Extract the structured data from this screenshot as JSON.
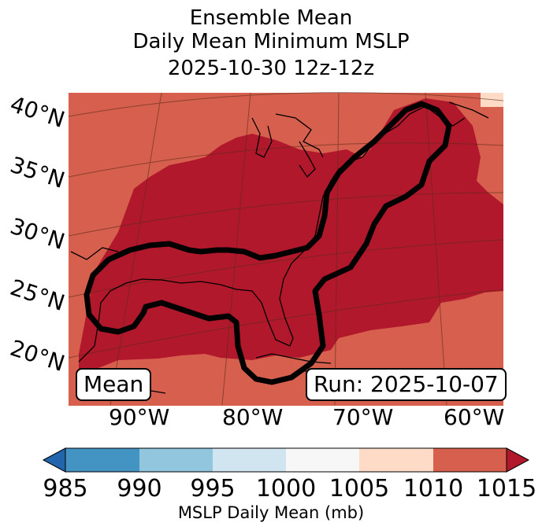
{
  "title": {
    "line1": "Ensemble Mean",
    "line2": "Daily Mean Minimum MSLP",
    "line3": "2025-10-30 12z-12z"
  },
  "map": {
    "lat_labels": [
      "40°N",
      "35°N",
      "30°N",
      "25°N",
      "20°N"
    ],
    "lon_labels": [
      "90°W",
      "80°W",
      "70°W",
      "60°W"
    ],
    "mean_box": "Mean",
    "run_box": "Run: 2025-10-07"
  },
  "colorbar": {
    "ticks": [
      "985",
      "990",
      "995",
      "1000",
      "1005",
      "1010",
      "1015"
    ],
    "label": "MSLP Daily Mean (mb)",
    "colors": [
      "#2166ac",
      "#4393c3",
      "#92c5de",
      "#d1e5f0",
      "#f7f7f7",
      "#fddbc7",
      "#d6604d",
      "#b2182b"
    ]
  }
}
